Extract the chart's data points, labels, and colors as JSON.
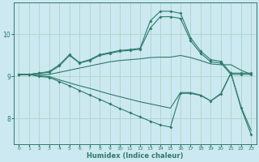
{
  "xlabel": "Humidex (Indice chaleur)",
  "bg_color": "#cce8f0",
  "line_color": "#2d7b6b",
  "grid_color": "#b0d8cc",
  "xlim": [
    -0.5,
    23.5
  ],
  "ylim": [
    7.4,
    10.75
  ],
  "yticks": [
    8,
    9,
    10
  ],
  "xticks": [
    0,
    1,
    2,
    3,
    4,
    5,
    6,
    7,
    8,
    9,
    10,
    11,
    12,
    13,
    14,
    15,
    16,
    17,
    18,
    19,
    20,
    21,
    22,
    23
  ],
  "lines": [
    {
      "x": [
        0,
        1,
        2,
        3,
        4,
        5,
        6,
        7,
        8,
        9,
        10,
        11,
        12,
        13,
        14,
        15,
        16,
        17,
        18,
        19,
        20,
        21,
        22,
        23
      ],
      "y": [
        9.05,
        9.05,
        9.08,
        9.1,
        9.25,
        9.5,
        9.32,
        9.38,
        9.5,
        9.55,
        9.6,
        9.62,
        9.65,
        10.15,
        10.42,
        10.42,
        10.38,
        9.85,
        9.55,
        9.35,
        9.32,
        9.05,
        9.05,
        9.05
      ],
      "marker": true
    },
    {
      "x": [
        0,
        1,
        2,
        3,
        4,
        5,
        6,
        7,
        8,
        9,
        10,
        11,
        12,
        13,
        14,
        15,
        16,
        17,
        18,
        19,
        20,
        21,
        22,
        23
      ],
      "y": [
        9.05,
        9.05,
        9.08,
        9.12,
        9.28,
        9.52,
        9.33,
        9.4,
        9.52,
        9.57,
        9.62,
        9.64,
        9.67,
        10.32,
        10.55,
        10.55,
        10.5,
        9.92,
        9.6,
        9.4,
        9.36,
        9.08,
        9.08,
        9.08
      ],
      "marker": true
    },
    {
      "x": [
        0,
        1,
        2,
        3,
        4,
        5,
        6,
        7,
        8,
        9,
        10,
        11,
        12,
        13,
        14,
        15,
        16,
        17,
        18,
        19,
        20,
        21,
        22,
        23
      ],
      "y": [
        9.05,
        9.05,
        9.05,
        9.05,
        9.1,
        9.15,
        9.2,
        9.25,
        9.3,
        9.35,
        9.38,
        9.4,
        9.42,
        9.45,
        9.46,
        9.46,
        9.5,
        9.45,
        9.38,
        9.3,
        9.28,
        9.28,
        9.15,
        9.05
      ],
      "marker": false
    },
    {
      "x": [
        0,
        1,
        2,
        3,
        4,
        5,
        6,
        7,
        8,
        9,
        10,
        11,
        12,
        13,
        14,
        15,
        16,
        17,
        18,
        19,
        20,
        21,
        22,
        23
      ],
      "y": [
        9.05,
        9.05,
        9.02,
        9.0,
        8.92,
        8.85,
        8.78,
        8.72,
        8.65,
        8.58,
        8.52,
        8.46,
        8.4,
        8.35,
        8.3,
        8.25,
        8.62,
        8.62,
        8.56,
        8.42,
        8.6,
        9.08,
        8.28,
        7.72
      ],
      "marker": false
    },
    {
      "x": [
        0,
        1,
        2,
        3,
        4,
        5,
        6,
        7,
        8,
        9,
        10,
        11,
        12,
        13,
        14,
        15,
        16,
        17,
        18,
        19,
        20,
        21,
        22,
        23
      ],
      "y": [
        9.05,
        9.05,
        9.0,
        8.98,
        8.88,
        8.78,
        8.67,
        8.56,
        8.46,
        8.35,
        8.24,
        8.14,
        8.04,
        7.94,
        7.85,
        7.8,
        8.6,
        8.6,
        8.55,
        8.42,
        8.58,
        9.08,
        8.25,
        7.62
      ],
      "marker": true
    }
  ]
}
